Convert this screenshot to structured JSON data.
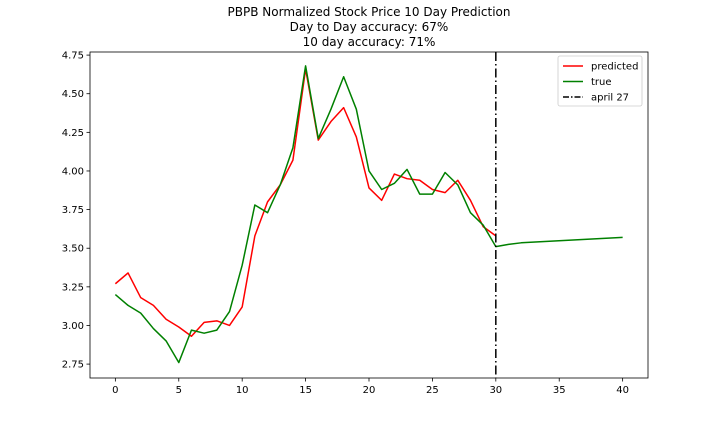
{
  "chart_data": {
    "type": "line",
    "title_lines": [
      "PBPB Normalized Stock Price 10 Day Prediction",
      "Day to Day accuracy: 67%",
      "10 day accuracy: 71%"
    ],
    "xlabel": "",
    "ylabel": "",
    "xlim": [
      -2,
      42
    ],
    "ylim": [
      2.66,
      4.77
    ],
    "x_ticks": [
      0,
      5,
      10,
      15,
      20,
      25,
      30,
      35,
      40
    ],
    "y_ticks": [
      2.75,
      3.0,
      3.25,
      3.5,
      3.75,
      4.0,
      4.25,
      4.5,
      4.75
    ],
    "y_tick_labels": [
      "2.75",
      "3.00",
      "3.25",
      "3.50",
      "3.75",
      "4.00",
      "4.25",
      "4.50",
      "4.75"
    ],
    "grid": false,
    "legend_position": "top-right",
    "series": [
      {
        "name": "predicted",
        "color": "#ff0000",
        "x": [
          0,
          1,
          2,
          3,
          4,
          5,
          6,
          7,
          8,
          9,
          10,
          11,
          12,
          13,
          14,
          15,
          16,
          17,
          18,
          19,
          20,
          21,
          22,
          23,
          24,
          25,
          26,
          27,
          28,
          29,
          30
        ],
        "y": [
          3.27,
          3.34,
          3.18,
          3.13,
          3.04,
          2.99,
          2.93,
          3.02,
          3.03,
          3.0,
          3.12,
          3.58,
          3.8,
          3.91,
          4.07,
          4.66,
          4.2,
          4.32,
          4.41,
          4.22,
          3.89,
          3.81,
          3.98,
          3.95,
          3.94,
          3.88,
          3.86,
          3.94,
          3.81,
          3.64,
          3.58
        ]
      },
      {
        "name": "true",
        "color": "#008000",
        "x": [
          0,
          1,
          2,
          3,
          4,
          5,
          6,
          7,
          8,
          9,
          10,
          11,
          12,
          13,
          14,
          15,
          16,
          17,
          18,
          19,
          20,
          21,
          22,
          23,
          24,
          25,
          26,
          27,
          28,
          29,
          30,
          31,
          32,
          40
        ],
        "y": [
          3.2,
          3.13,
          3.08,
          2.98,
          2.9,
          2.76,
          2.97,
          2.95,
          2.97,
          3.09,
          3.39,
          3.78,
          3.73,
          3.91,
          4.15,
          4.68,
          4.21,
          4.4,
          4.61,
          4.4,
          4.0,
          3.88,
          3.92,
          4.01,
          3.85,
          3.85,
          3.99,
          3.91,
          3.73,
          3.65,
          3.51,
          3.525,
          3.535,
          3.57
        ]
      }
    ],
    "vline": {
      "name": "april 27",
      "x": 30,
      "color": "#000000"
    }
  }
}
